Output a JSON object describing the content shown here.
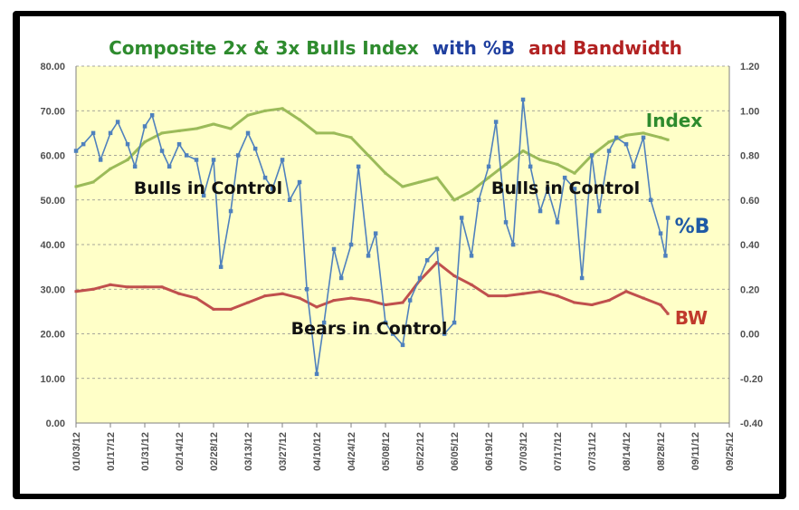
{
  "title": {
    "part1": "Composite 2x & 3x Bulls Index",
    "part2": "with %B",
    "part3": "and Bandwidth",
    "color1": "#2e8b2e",
    "color2": "#1f3f9f",
    "color3": "#b22222"
  },
  "annotations": {
    "index": "Index",
    "pctb": "%B",
    "bw": "BW",
    "bulls1": "Bulls in Control",
    "bulls2": "Bulls in Control",
    "bears": "Bears in Control"
  },
  "colors": {
    "plot_bg": "#ffffc8",
    "index": "#9bbb59",
    "pctb": "#4f81bd",
    "bw": "#c0504d",
    "grid": "#8a8a8a"
  },
  "chart_data": {
    "type": "line",
    "x_tick_labels": [
      "01/03/12",
      "01/17/12",
      "01/31/12",
      "02/14/12",
      "02/28/12",
      "03/13/12",
      "03/27/12",
      "04/10/12",
      "04/24/12",
      "05/08/12",
      "05/22/12",
      "06/05/12",
      "06/19/12",
      "07/03/12",
      "07/17/12",
      "07/31/12",
      "08/14/12",
      "08/28/12",
      "09/11/12",
      "09/25/12"
    ],
    "y_left": {
      "min": 0,
      "max": 80,
      "step": 10,
      "tick_labels": [
        "0.00",
        "10.00",
        "20.00",
        "30.00",
        "40.00",
        "50.00",
        "60.00",
        "70.00",
        "80.00"
      ]
    },
    "y_right": {
      "min": -0.4,
      "max": 1.2,
      "step": 0.2,
      "tick_labels": [
        "-0.40",
        "-0.20",
        "0.00",
        "0.20",
        "0.40",
        "0.60",
        "0.80",
        "1.00",
        "1.20"
      ]
    },
    "grid": true,
    "series": [
      {
        "name": "Index",
        "axis": "left",
        "x": [
          "01/03/12",
          "01/10/12",
          "01/17/12",
          "01/24/12",
          "01/31/12",
          "02/07/12",
          "02/14/12",
          "02/21/12",
          "02/28/12",
          "03/06/12",
          "03/13/12",
          "03/20/12",
          "03/27/12",
          "04/03/12",
          "04/10/12",
          "04/17/12",
          "04/24/12",
          "05/01/12",
          "05/08/12",
          "05/15/12",
          "05/22/12",
          "05/29/12",
          "06/05/12",
          "06/12/12",
          "06/19/12",
          "06/26/12",
          "07/03/12",
          "07/10/12",
          "07/17/12",
          "07/24/12",
          "07/31/12",
          "08/07/12",
          "08/14/12",
          "08/21/12",
          "08/28/12",
          "08/31/12"
        ],
        "values": [
          53,
          54,
          57,
          59,
          63,
          65,
          65.5,
          66,
          67,
          66,
          69,
          70,
          70.5,
          68,
          65,
          65,
          64,
          60,
          56,
          53,
          54,
          55,
          50,
          52,
          55,
          58,
          61,
          59,
          58,
          56,
          60,
          63,
          64.5,
          65,
          64,
          63.5
        ]
      },
      {
        "name": "%B",
        "axis": "right",
        "x": [
          "01/03/12",
          "01/06/12",
          "01/10/12",
          "01/13/12",
          "01/17/12",
          "01/20/12",
          "01/24/12",
          "01/27/12",
          "01/31/12",
          "02/03/12",
          "02/07/12",
          "02/10/12",
          "02/14/12",
          "02/17/12",
          "02/21/12",
          "02/24/12",
          "02/28/12",
          "03/02/12",
          "03/06/12",
          "03/09/12",
          "03/13/12",
          "03/16/12",
          "03/20/12",
          "03/23/12",
          "03/27/12",
          "03/30/12",
          "04/03/12",
          "04/06/12",
          "04/10/12",
          "04/13/12",
          "04/17/12",
          "04/20/12",
          "04/24/12",
          "04/27/12",
          "05/01/12",
          "05/04/12",
          "05/08/12",
          "05/11/12",
          "05/15/12",
          "05/18/12",
          "05/22/12",
          "05/25/12",
          "05/29/12",
          "06/01/12",
          "06/05/12",
          "06/08/12",
          "06/12/12",
          "06/15/12",
          "06/19/12",
          "06/22/12",
          "06/26/12",
          "06/29/12",
          "07/03/12",
          "07/06/12",
          "07/10/12",
          "07/13/12",
          "07/17/12",
          "07/20/12",
          "07/24/12",
          "07/27/12",
          "07/31/12",
          "08/03/12",
          "08/07/12",
          "08/10/12",
          "08/14/12",
          "08/17/12",
          "08/21/12",
          "08/24/12",
          "08/28/12",
          "08/30/12",
          "08/31/12"
        ],
        "values": [
          0.82,
          0.85,
          0.9,
          0.78,
          0.9,
          0.95,
          0.85,
          0.75,
          0.93,
          0.98,
          0.82,
          0.75,
          0.85,
          0.8,
          0.78,
          0.62,
          0.78,
          0.3,
          0.55,
          0.8,
          0.9,
          0.83,
          0.7,
          0.65,
          0.78,
          0.6,
          0.68,
          0.2,
          -0.18,
          0.05,
          0.38,
          0.25,
          0.4,
          0.75,
          0.35,
          0.45,
          0.05,
          0.0,
          -0.05,
          0.15,
          0.25,
          0.33,
          0.38,
          0.0,
          0.05,
          0.52,
          0.35,
          0.6,
          0.75,
          0.95,
          0.5,
          0.4,
          1.05,
          0.75,
          0.55,
          0.65,
          0.5,
          0.7,
          0.65,
          0.25,
          0.8,
          0.55,
          0.82,
          0.88,
          0.85,
          0.75,
          0.88,
          0.6,
          0.45,
          0.35,
          0.52
        ]
      },
      {
        "name": "BW",
        "axis": "left",
        "x": [
          "01/03/12",
          "01/10/12",
          "01/17/12",
          "01/24/12",
          "01/31/12",
          "02/07/12",
          "02/14/12",
          "02/21/12",
          "02/28/12",
          "03/06/12",
          "03/13/12",
          "03/20/12",
          "03/27/12",
          "04/03/12",
          "04/10/12",
          "04/17/12",
          "04/24/12",
          "05/01/12",
          "05/08/12",
          "05/15/12",
          "05/22/12",
          "05/29/12",
          "06/05/12",
          "06/12/12",
          "06/19/12",
          "06/26/12",
          "07/03/12",
          "07/10/12",
          "07/17/12",
          "07/24/12",
          "07/31/12",
          "08/07/12",
          "08/14/12",
          "08/21/12",
          "08/28/12",
          "08/31/12"
        ],
        "values": [
          29.5,
          30,
          31,
          30.5,
          30.5,
          30.5,
          29,
          28,
          25.5,
          25.5,
          27,
          28.5,
          29,
          28,
          26,
          27.5,
          28,
          27.5,
          26.5,
          27,
          32,
          36,
          33,
          31,
          28.5,
          28.5,
          29,
          29.5,
          28.5,
          27,
          26.5,
          27.5,
          29.5,
          28,
          26.5,
          24.5
        ]
      }
    ]
  }
}
